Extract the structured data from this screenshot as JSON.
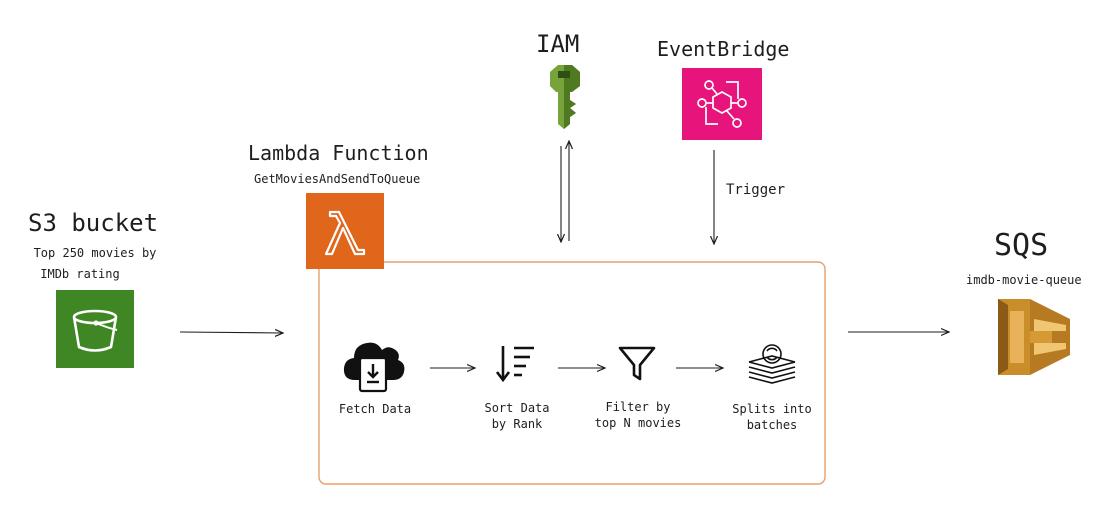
{
  "s3": {
    "title": "S3 bucket",
    "desc_line1": "Top 250 movies by",
    "desc_line2": "IMDb rating"
  },
  "lambda": {
    "title": "Lambda Function",
    "subtitle": "GetMoviesAndSendToQueue"
  },
  "iam": {
    "title": "IAM"
  },
  "eventbridge": {
    "title": "EventBridge"
  },
  "trigger_label": "Trigger",
  "sqs": {
    "title": "SQS",
    "subtitle": "imdb-movie-queue"
  },
  "steps": [
    {
      "line1": "Fetch Data",
      "line2": ""
    },
    {
      "line1": "Sort Data",
      "line2": "by Rank"
    },
    {
      "line1": "Filter by",
      "line2": "top N movies"
    },
    {
      "line1": "Splits into",
      "line2": "batches"
    }
  ],
  "colors": {
    "s3_green": "#3f8624",
    "lambda_orange": "#e0661c",
    "iam_green": "#76a33a",
    "eventbridge_pink": "#e7157b",
    "sqs_gold": "#c98d2a",
    "box_border": "#e8a06a",
    "stroke": "#1e1e1e"
  },
  "icons": [
    "s3-bucket-icon",
    "lambda-icon",
    "iam-key-icon",
    "eventbridge-icon",
    "sqs-icon",
    "cloud-download-icon",
    "sort-descending-icon",
    "filter-funnel-icon",
    "stack-batches-icon"
  ]
}
